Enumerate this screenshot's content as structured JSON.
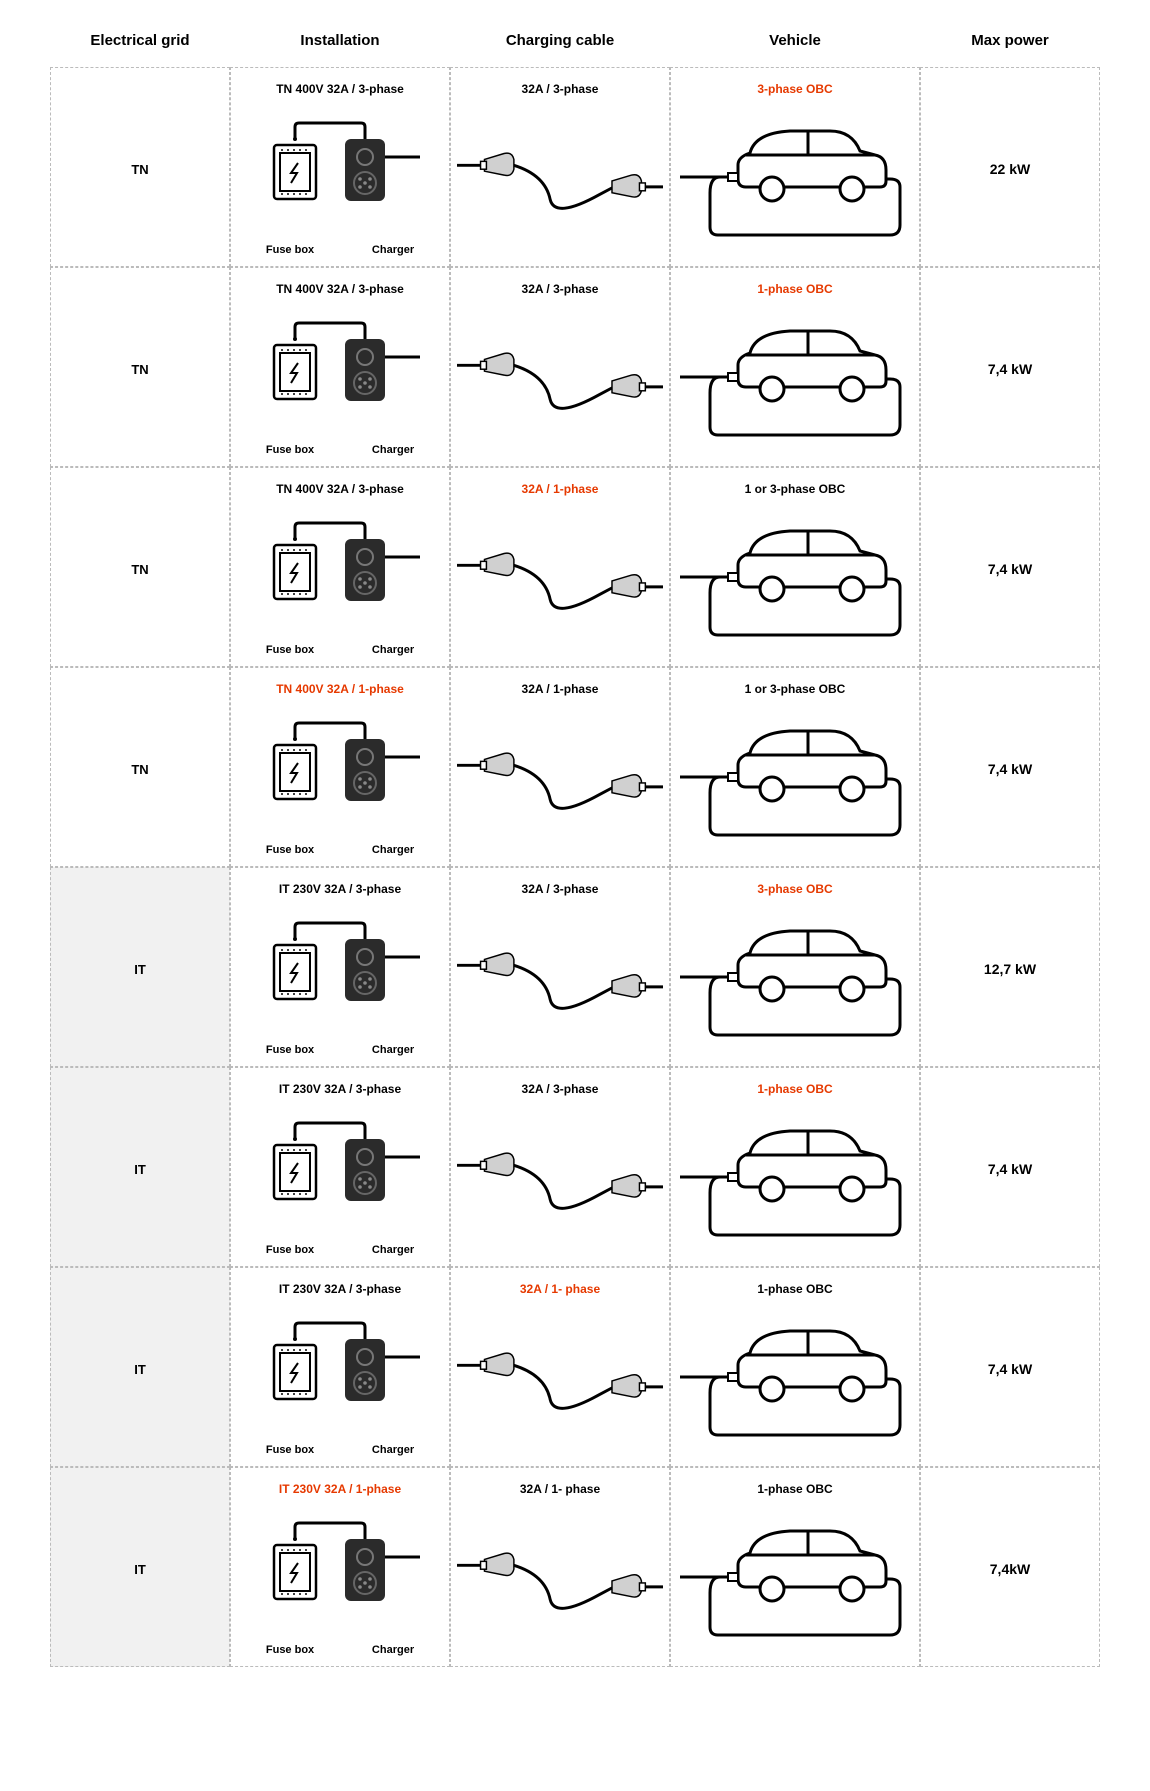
{
  "headers": {
    "grid": "Electrical grid",
    "installation": "Installation",
    "cable": "Charging cable",
    "vehicle": "Vehicle",
    "power": "Max power"
  },
  "sub_labels": {
    "fusebox": "Fuse box",
    "charger": "Charger"
  },
  "colors": {
    "highlight": "#e63900",
    "text": "#000000",
    "border": "#bbbbbb",
    "shade": "#f1f1f1",
    "charger_body": "#2b2b2b"
  },
  "rows": [
    {
      "grid": "TN",
      "grid_shaded": false,
      "installation": "TN 400V 32A / 3-phase",
      "installation_hl": false,
      "cable": "32A / 3-phase",
      "cable_hl": false,
      "vehicle": "3-phase OBC",
      "vehicle_hl": true,
      "power": "22 kW"
    },
    {
      "grid": "TN",
      "grid_shaded": false,
      "installation": "TN 400V 32A / 3-phase",
      "installation_hl": false,
      "cable": "32A / 3-phase",
      "cable_hl": false,
      "vehicle": "1-phase OBC",
      "vehicle_hl": true,
      "power": "7,4 kW"
    },
    {
      "grid": "TN",
      "grid_shaded": false,
      "installation": "TN 400V 32A / 3-phase",
      "installation_hl": false,
      "cable": "32A / 1-phase",
      "cable_hl": true,
      "vehicle": "1 or 3-phase OBC",
      "vehicle_hl": false,
      "power": "7,4 kW"
    },
    {
      "grid": "TN",
      "grid_shaded": false,
      "installation": "TN 400V 32A / 1-phase",
      "installation_hl": true,
      "cable": "32A / 1-phase",
      "cable_hl": false,
      "vehicle": "1 or 3-phase OBC",
      "vehicle_hl": false,
      "power": "7,4 kW"
    },
    {
      "grid": "IT",
      "grid_shaded": true,
      "installation": "IT 230V 32A / 3-phase",
      "installation_hl": false,
      "cable": "32A / 3-phase",
      "cable_hl": false,
      "vehicle": "3-phase OBC",
      "vehicle_hl": true,
      "power": "12,7 kW"
    },
    {
      "grid": "IT",
      "grid_shaded": true,
      "installation": "IT 230V 32A / 3-phase",
      "installation_hl": false,
      "cable": "32A / 3-phase",
      "cable_hl": false,
      "vehicle": "1-phase OBC",
      "vehicle_hl": true,
      "power": "7,4 kW"
    },
    {
      "grid": "IT",
      "grid_shaded": true,
      "installation": "IT 230V 32A / 3-phase",
      "installation_hl": false,
      "cable": "32A / 1- phase",
      "cable_hl": true,
      "vehicle": "1-phase OBC",
      "vehicle_hl": false,
      "power": "7,4 kW"
    },
    {
      "grid": "IT",
      "grid_shaded": true,
      "installation": "IT 230V 32A / 1-phase",
      "installation_hl": true,
      "cable": "32A / 1- phase",
      "cable_hl": false,
      "vehicle": "1-phase OBC",
      "vehicle_hl": false,
      "power": "7,4kW"
    }
  ]
}
